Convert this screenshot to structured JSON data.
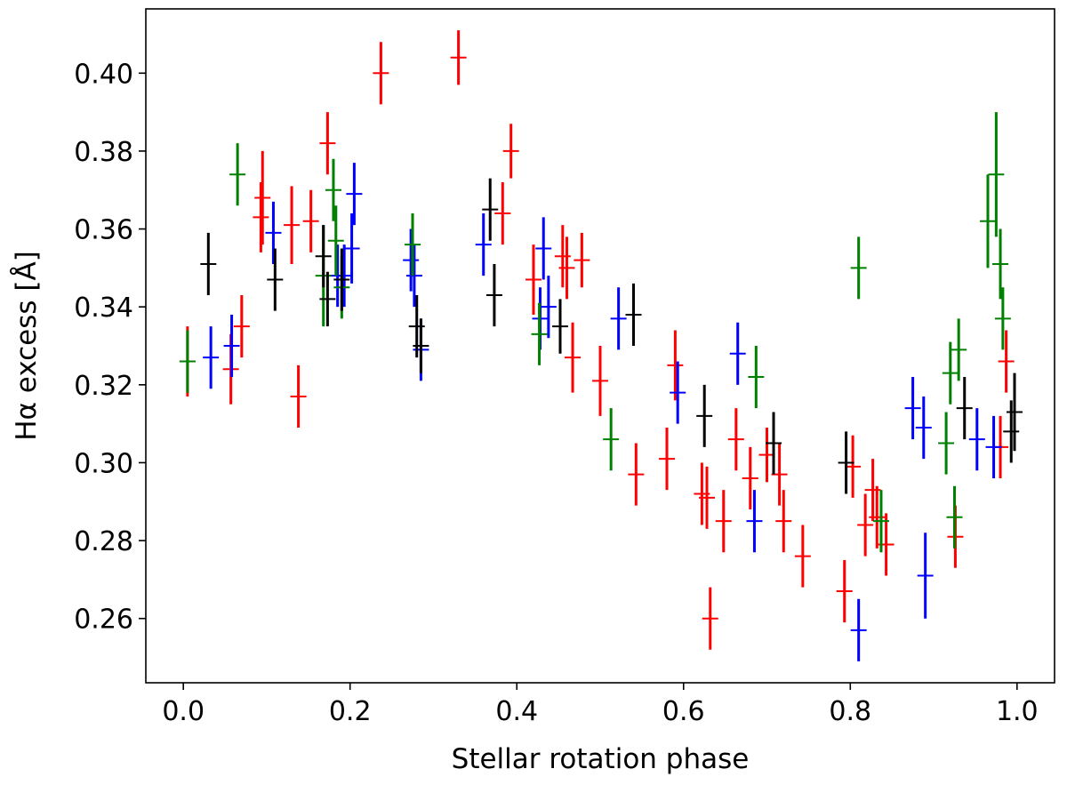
{
  "chart_data": {
    "type": "scatter",
    "xlabel": "Stellar rotation phase",
    "ylabel": "Hα excess [Å]",
    "xlim": [
      -0.045,
      1.045
    ],
    "ylim": [
      0.2435,
      0.4165
    ],
    "xticks": [
      0.0,
      0.2,
      0.4,
      0.6,
      0.8,
      1.0
    ],
    "xtick_labels": [
      "0.0",
      "0.2",
      "0.4",
      "0.6",
      "0.8",
      "1.0"
    ],
    "yticks": [
      0.26,
      0.28,
      0.3,
      0.32,
      0.34,
      0.36,
      0.38,
      0.4
    ],
    "ytick_labels": [
      "0.26",
      "0.28",
      "0.30",
      "0.32",
      "0.34",
      "0.36",
      "0.38",
      "0.40"
    ],
    "grid": false,
    "legend": "none",
    "point_format": "[phase, Hα excess, error]",
    "series": [
      {
        "name": "red",
        "color": "#ff0000",
        "points": [
          [
            0.005,
            0.326,
            0.009
          ],
          [
            0.057,
            0.324,
            0.009
          ],
          [
            0.07,
            0.335,
            0.008
          ],
          [
            0.093,
            0.363,
            0.009
          ],
          [
            0.095,
            0.368,
            0.012
          ],
          [
            0.13,
            0.361,
            0.01
          ],
          [
            0.138,
            0.317,
            0.008
          ],
          [
            0.153,
            0.362,
            0.008
          ],
          [
            0.173,
            0.382,
            0.008
          ],
          [
            0.237,
            0.4,
            0.008
          ],
          [
            0.33,
            0.404,
            0.007
          ],
          [
            0.383,
            0.364,
            0.008
          ],
          [
            0.393,
            0.38,
            0.007
          ],
          [
            0.42,
            0.347,
            0.009
          ],
          [
            0.455,
            0.353,
            0.008
          ],
          [
            0.46,
            0.35,
            0.008
          ],
          [
            0.467,
            0.327,
            0.009
          ],
          [
            0.478,
            0.352,
            0.007
          ],
          [
            0.5,
            0.321,
            0.009
          ],
          [
            0.543,
            0.297,
            0.008
          ],
          [
            0.58,
            0.301,
            0.008
          ],
          [
            0.59,
            0.325,
            0.009
          ],
          [
            0.622,
            0.292,
            0.008
          ],
          [
            0.628,
            0.291,
            0.008
          ],
          [
            0.632,
            0.26,
            0.008
          ],
          [
            0.648,
            0.285,
            0.008
          ],
          [
            0.663,
            0.306,
            0.008
          ],
          [
            0.68,
            0.296,
            0.008
          ],
          [
            0.7,
            0.302,
            0.007
          ],
          [
            0.715,
            0.297,
            0.008
          ],
          [
            0.72,
            0.285,
            0.008
          ],
          [
            0.743,
            0.276,
            0.008
          ],
          [
            0.793,
            0.267,
            0.008
          ],
          [
            0.803,
            0.299,
            0.008
          ],
          [
            0.818,
            0.284,
            0.008
          ],
          [
            0.827,
            0.293,
            0.008
          ],
          [
            0.832,
            0.286,
            0.008
          ],
          [
            0.843,
            0.279,
            0.008
          ],
          [
            0.926,
            0.281,
            0.008
          ],
          [
            0.98,
            0.304,
            0.008
          ],
          [
            0.987,
            0.326,
            0.008
          ]
        ]
      },
      {
        "name": "blue",
        "color": "#0000ff",
        "points": [
          [
            0.033,
            0.327,
            0.008
          ],
          [
            0.058,
            0.33,
            0.008
          ],
          [
            0.108,
            0.359,
            0.008
          ],
          [
            0.185,
            0.348,
            0.008
          ],
          [
            0.193,
            0.348,
            0.008
          ],
          [
            0.202,
            0.355,
            0.009
          ],
          [
            0.205,
            0.369,
            0.008
          ],
          [
            0.273,
            0.352,
            0.008
          ],
          [
            0.277,
            0.348,
            0.008
          ],
          [
            0.285,
            0.329,
            0.008
          ],
          [
            0.36,
            0.356,
            0.008
          ],
          [
            0.428,
            0.337,
            0.008
          ],
          [
            0.432,
            0.355,
            0.008
          ],
          [
            0.438,
            0.34,
            0.008
          ],
          [
            0.522,
            0.337,
            0.008
          ],
          [
            0.593,
            0.318,
            0.008
          ],
          [
            0.665,
            0.328,
            0.008
          ],
          [
            0.685,
            0.285,
            0.008
          ],
          [
            0.81,
            0.257,
            0.008
          ],
          [
            0.875,
            0.314,
            0.008
          ],
          [
            0.888,
            0.309,
            0.008
          ],
          [
            0.89,
            0.271,
            0.011
          ],
          [
            0.952,
            0.306,
            0.008
          ],
          [
            0.972,
            0.304,
            0.008
          ]
        ]
      },
      {
        "name": "green",
        "color": "#008000",
        "points": [
          [
            0.005,
            0.326,
            0.008
          ],
          [
            0.065,
            0.374,
            0.008
          ],
          [
            0.168,
            0.348,
            0.013
          ],
          [
            0.18,
            0.37,
            0.008
          ],
          [
            0.183,
            0.357,
            0.009
          ],
          [
            0.19,
            0.345,
            0.008
          ],
          [
            0.275,
            0.356,
            0.008
          ],
          [
            0.427,
            0.333,
            0.008
          ],
          [
            0.513,
            0.306,
            0.008
          ],
          [
            0.687,
            0.322,
            0.008
          ],
          [
            0.81,
            0.35,
            0.008
          ],
          [
            0.837,
            0.285,
            0.008
          ],
          [
            0.915,
            0.305,
            0.008
          ],
          [
            0.92,
            0.323,
            0.008
          ],
          [
            0.925,
            0.286,
            0.008
          ],
          [
            0.93,
            0.329,
            0.008
          ],
          [
            0.965,
            0.362,
            0.012
          ],
          [
            0.975,
            0.374,
            0.016
          ],
          [
            0.98,
            0.351,
            0.009
          ],
          [
            0.983,
            0.337,
            0.008
          ]
        ]
      },
      {
        "name": "black",
        "color": "#000000",
        "points": [
          [
            0.03,
            0.351,
            0.008
          ],
          [
            0.11,
            0.347,
            0.008
          ],
          [
            0.168,
            0.353,
            0.008
          ],
          [
            0.173,
            0.342,
            0.007
          ],
          [
            0.19,
            0.347,
            0.008
          ],
          [
            0.28,
            0.335,
            0.008
          ],
          [
            0.285,
            0.33,
            0.007
          ],
          [
            0.368,
            0.365,
            0.008
          ],
          [
            0.373,
            0.343,
            0.008
          ],
          [
            0.452,
            0.335,
            0.007
          ],
          [
            0.54,
            0.338,
            0.008
          ],
          [
            0.625,
            0.312,
            0.008
          ],
          [
            0.708,
            0.305,
            0.008
          ],
          [
            0.795,
            0.3,
            0.008
          ],
          [
            0.937,
            0.314,
            0.008
          ],
          [
            0.993,
            0.308,
            0.008
          ],
          [
            0.997,
            0.313,
            0.01
          ]
        ]
      }
    ]
  }
}
